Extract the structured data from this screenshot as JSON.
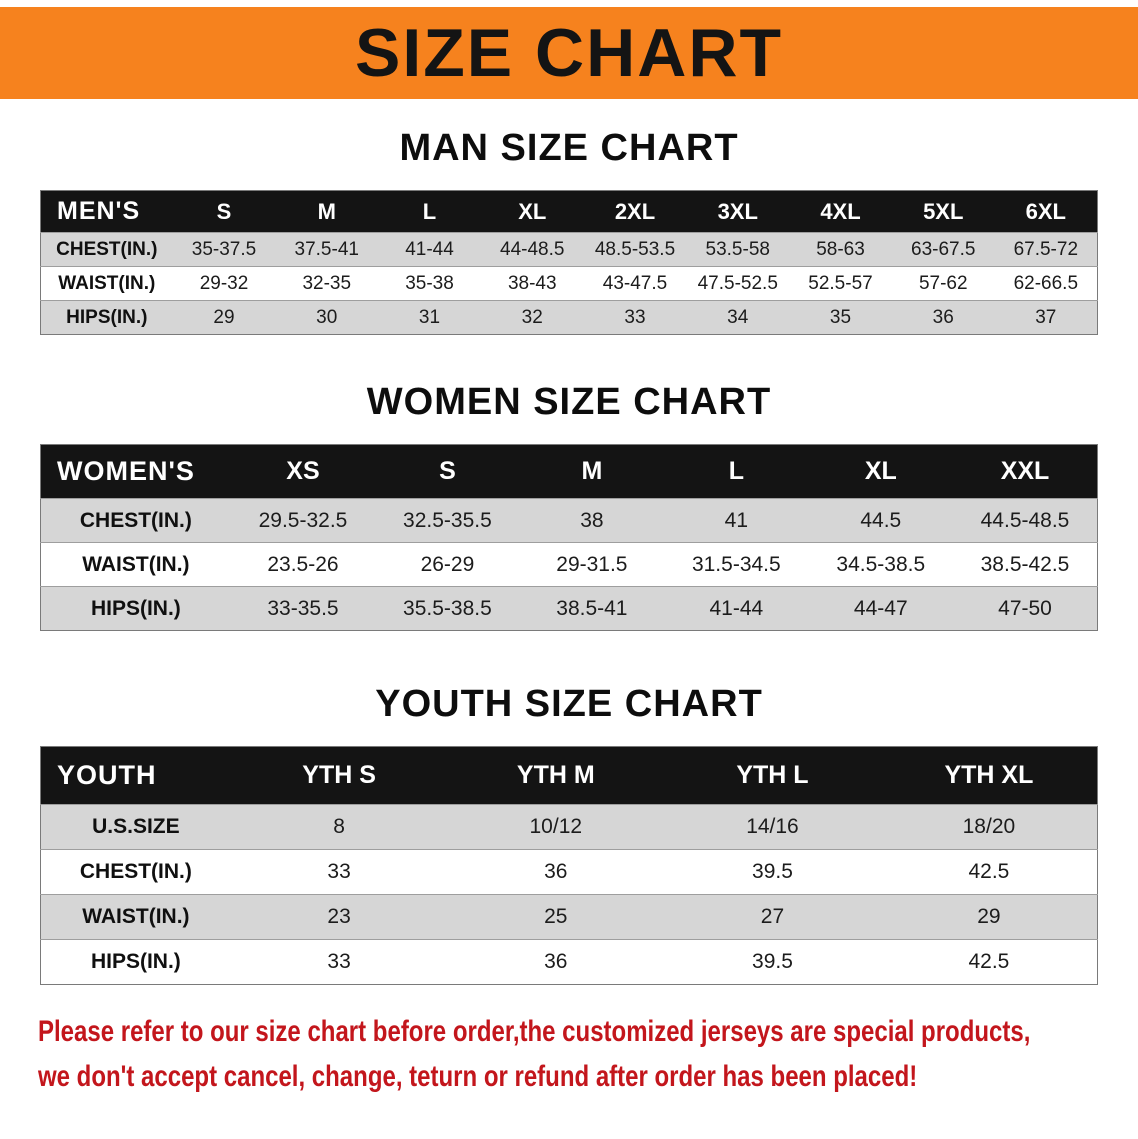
{
  "banner": {
    "title": "SIZE CHART",
    "background_color": "#F6821E",
    "text_color": "#141414"
  },
  "sections": [
    {
      "heading": "MAN SIZE CHART",
      "table": {
        "header_label": "MEN'S",
        "columns": [
          "S",
          "M",
          "L",
          "XL",
          "2XL",
          "3XL",
          "4XL",
          "5XL",
          "6XL"
        ],
        "rows": [
          {
            "label": "CHEST(IN.)",
            "values": [
              "35-37.5",
              "37.5-41",
              "41-44",
              "44-48.5",
              "48.5-53.5",
              "53.5-58",
              "58-63",
              "63-67.5",
              "67.5-72"
            ]
          },
          {
            "label": "WAIST(IN.)",
            "values": [
              "29-32",
              "32-35",
              "35-38",
              "38-43",
              "43-47.5",
              "47.5-52.5",
              "52.5-57",
              "57-62",
              "62-66.5"
            ]
          },
          {
            "label": "HIPS(IN.)",
            "values": [
              "29",
              "30",
              "31",
              "32",
              "33",
              "34",
              "35",
              "36",
              "37"
            ]
          }
        ]
      }
    },
    {
      "heading": "WOMEN SIZE CHART",
      "table": {
        "header_label": "WOMEN'S",
        "columns": [
          "XS",
          "S",
          "M",
          "L",
          "XL",
          "XXL"
        ],
        "rows": [
          {
            "label": "CHEST(IN.)",
            "values": [
              "29.5-32.5",
              "32.5-35.5",
              "38",
              "41",
              "44.5",
              "44.5-48.5"
            ]
          },
          {
            "label": "WAIST(IN.)",
            "values": [
              "23.5-26",
              "26-29",
              "29-31.5",
              "31.5-34.5",
              "34.5-38.5",
              "38.5-42.5"
            ]
          },
          {
            "label": "HIPS(IN.)",
            "values": [
              "33-35.5",
              "35.5-38.5",
              "38.5-41",
              "41-44",
              "44-47",
              "47-50"
            ]
          }
        ]
      }
    },
    {
      "heading": "YOUTH SIZE CHART",
      "table": {
        "header_label": "YOUTH",
        "columns": [
          "YTH S",
          "YTH M",
          "YTH L",
          "YTH XL"
        ],
        "rows": [
          {
            "label": "U.S.SIZE",
            "values": [
              "8",
              "10/12",
              "14/16",
              "18/20"
            ]
          },
          {
            "label": "CHEST(IN.)",
            "values": [
              "33",
              "36",
              "39.5",
              "42.5"
            ]
          },
          {
            "label": "WAIST(IN.)",
            "values": [
              "23",
              "25",
              "27",
              "29"
            ]
          },
          {
            "label": "HIPS(IN.)",
            "values": [
              "33",
              "36",
              "39.5",
              "42.5"
            ]
          }
        ]
      }
    }
  ],
  "footnote": {
    "lines": [
      "Please refer to our size chart before order,the customized jerseys are special products,",
      "we don't accept cancel, change, teturn or refund after order has been placed!"
    ],
    "text_color": "#C3161C"
  },
  "chart_data": [
    {
      "type": "table",
      "title": "MAN SIZE CHART",
      "columns": [
        "MEN'S",
        "S",
        "M",
        "L",
        "XL",
        "2XL",
        "3XL",
        "4XL",
        "5XL",
        "6XL"
      ],
      "rows": [
        [
          "CHEST(IN.)",
          "35-37.5",
          "37.5-41",
          "41-44",
          "44-48.5",
          "48.5-53.5",
          "53.5-58",
          "58-63",
          "63-67.5",
          "67.5-72"
        ],
        [
          "WAIST(IN.)",
          "29-32",
          "32-35",
          "35-38",
          "38-43",
          "43-47.5",
          "47.5-52.5",
          "52.5-57",
          "57-62",
          "62-66.5"
        ],
        [
          "HIPS(IN.)",
          "29",
          "30",
          "31",
          "32",
          "33",
          "34",
          "35",
          "36",
          "37"
        ]
      ]
    },
    {
      "type": "table",
      "title": "WOMEN SIZE CHART",
      "columns": [
        "WOMEN'S",
        "XS",
        "S",
        "M",
        "L",
        "XL",
        "XXL"
      ],
      "rows": [
        [
          "CHEST(IN.)",
          "29.5-32.5",
          "32.5-35.5",
          "38",
          "41",
          "44.5",
          "44.5-48.5"
        ],
        [
          "WAIST(IN.)",
          "23.5-26",
          "26-29",
          "29-31.5",
          "31.5-34.5",
          "34.5-38.5",
          "38.5-42.5"
        ],
        [
          "HIPS(IN.)",
          "33-35.5",
          "35.5-38.5",
          "38.5-41",
          "41-44",
          "44-47",
          "47-50"
        ]
      ]
    },
    {
      "type": "table",
      "title": "YOUTH SIZE CHART",
      "columns": [
        "YOUTH",
        "YTH S",
        "YTH M",
        "YTH L",
        "YTH XL"
      ],
      "rows": [
        [
          "U.S.SIZE",
          "8",
          "10/12",
          "14/16",
          "18/20"
        ],
        [
          "CHEST(IN.)",
          "33",
          "36",
          "39.5",
          "42.5"
        ],
        [
          "WAIST(IN.)",
          "23",
          "25",
          "27",
          "29"
        ],
        [
          "HIPS(IN.)",
          "33",
          "36",
          "39.5",
          "42.5"
        ]
      ]
    }
  ]
}
